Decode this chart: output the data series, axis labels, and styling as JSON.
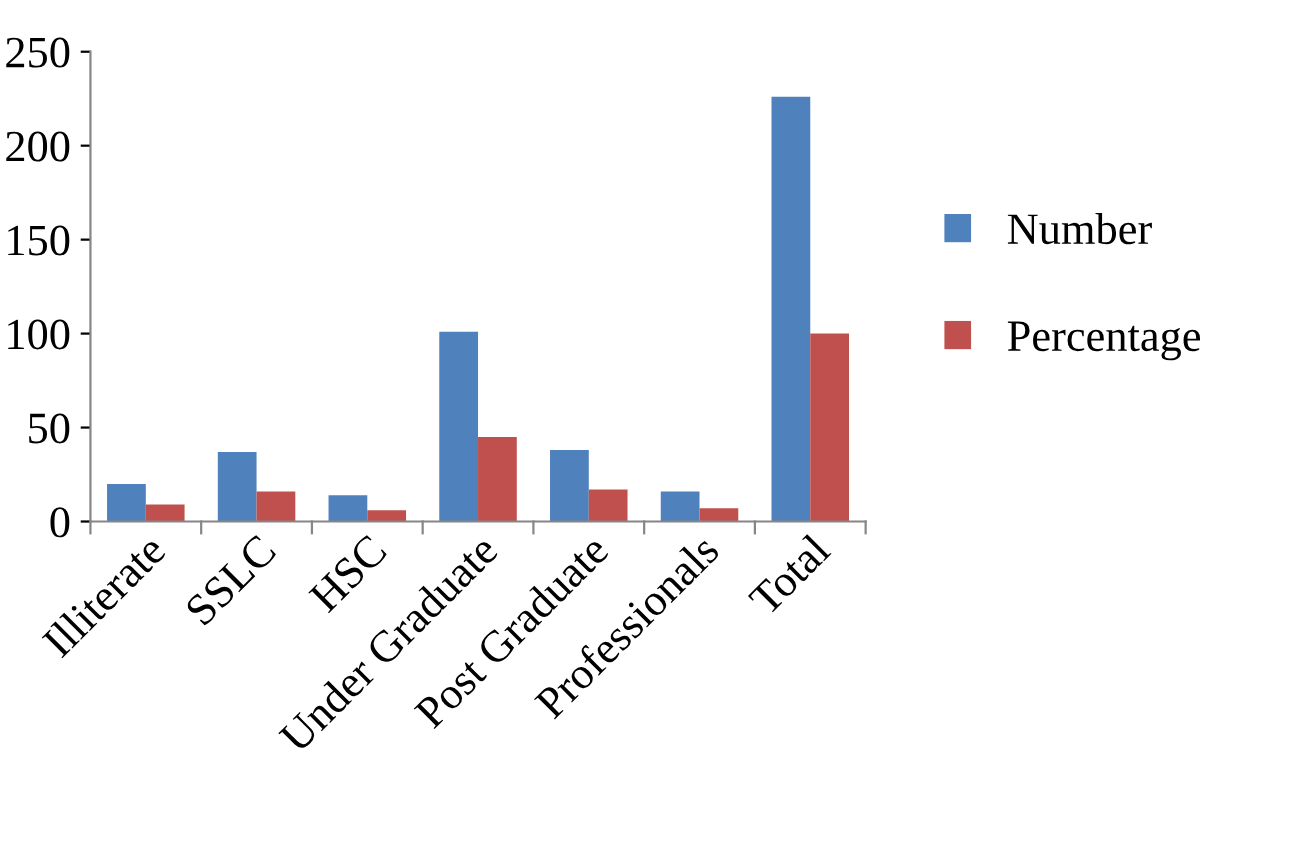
{
  "chart_data": {
    "type": "bar",
    "categories": [
      "Illiterate",
      "SSLC",
      "HSC",
      "Under Graduate",
      "Post Graduate",
      "Professionals",
      "Total"
    ],
    "series": [
      {
        "name": "Number",
        "color": "#4f81bd",
        "values": [
          20,
          37,
          14,
          101,
          38,
          16,
          226
        ]
      },
      {
        "name": "Percentage",
        "color": "#c0504d",
        "values": [
          9,
          16,
          6,
          45,
          17,
          7,
          100
        ]
      }
    ],
    "ylim": [
      0,
      250
    ],
    "yticks": [
      0,
      50,
      100,
      150,
      200,
      250
    ],
    "grid": false,
    "legend": "right"
  }
}
